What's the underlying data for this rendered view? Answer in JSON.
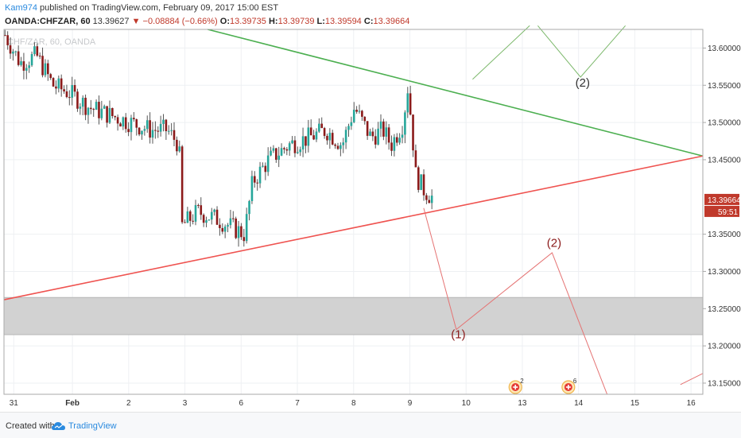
{
  "header": {
    "author": "Kam974",
    "published": " published on TradingView.com, February 09, 2017 15:00 EST",
    "symbol": "OANDA:CHFZAR, 60",
    "last": "13.39627",
    "arrow": "▼",
    "change": "−0.08884 (−0.66%)",
    "o_label": "O:",
    "o_val": "13.39735",
    "h_label": "H:",
    "h_val": "13.39739",
    "l_label": "L:",
    "l_val": "13.39594",
    "c_label": "C:",
    "c_val": "13.39664"
  },
  "footer": {
    "created_with": "Created with",
    "brand": "TradingView"
  },
  "chart_data": {
    "type": "candlestick",
    "watermark": "CHF/ZAR, 60, OANDA",
    "x_ticks": [
      "31",
      "Feb",
      "2",
      "3",
      "6",
      "7",
      "8",
      "9",
      "10",
      "13",
      "14",
      "15",
      "16"
    ],
    "y_ticks": [
      "13.60000",
      "13.55000",
      "13.50000",
      "13.45000",
      "13.35000",
      "13.30000",
      "13.25000",
      "13.20000",
      "13.15000"
    ],
    "ylim": [
      13.135,
      13.625
    ],
    "last_price_label": "13.39664",
    "countdown_label": "59:51",
    "path_points": [
      {
        "x": 0,
        "y": 13.62
      },
      {
        "x": 8,
        "y": 13.58
      },
      {
        "x": 16,
        "y": 13.59
      },
      {
        "x": 24,
        "y": 13.55
      },
      {
        "x": 32,
        "y": 13.54
      },
      {
        "x": 42,
        "y": 13.52
      },
      {
        "x": 52,
        "y": 13.51
      },
      {
        "x": 62,
        "y": 13.5
      },
      {
        "x": 72,
        "y": 13.49
      },
      {
        "x": 80,
        "y": 13.49
      },
      {
        "x": 86,
        "y": 13.47
      },
      {
        "x": 87,
        "y": 13.36
      },
      {
        "x": 95,
        "y": 13.38
      },
      {
        "x": 105,
        "y": 13.37
      },
      {
        "x": 118,
        "y": 13.35
      },
      {
        "x": 122,
        "y": 13.42
      },
      {
        "x": 130,
        "y": 13.45
      },
      {
        "x": 140,
        "y": 13.47
      },
      {
        "x": 150,
        "y": 13.48
      },
      {
        "x": 158,
        "y": 13.49
      },
      {
        "x": 166,
        "y": 13.47
      },
      {
        "x": 172,
        "y": 13.52
      },
      {
        "x": 176,
        "y": 13.5
      },
      {
        "x": 180,
        "y": 13.48
      },
      {
        "x": 186,
        "y": 13.49
      },
      {
        "x": 190,
        "y": 13.47
      },
      {
        "x": 196,
        "y": 13.5
      },
      {
        "x": 198,
        "y": 13.55
      },
      {
        "x": 200,
        "y": 13.5
      },
      {
        "x": 202,
        "y": 13.43
      },
      {
        "x": 206,
        "y": 13.41
      },
      {
        "x": 210,
        "y": 13.4
      }
    ],
    "trendlines": [
      {
        "name": "resistance",
        "color": "#4caf50",
        "x1": 100,
        "y1": 13.625,
        "x2": 343,
        "y2": 13.455
      },
      {
        "name": "support",
        "color": "#ef5350",
        "x1": 0,
        "y1": 13.262,
        "x2": 343,
        "y2": 13.455
      }
    ],
    "zone": {
      "from": 13.215,
      "to": 13.265,
      "color": "#d0d0d0"
    },
    "projections": [
      {
        "color": "#7cb86b",
        "points": [
          [
            230,
            13.558
          ],
          [
            258,
            13.63
          ]
        ]
      },
      {
        "color": "#7cb86b",
        "points": [
          [
            262,
            13.63
          ],
          [
            283,
            13.561
          ],
          [
            305,
            13.63
          ]
        ]
      },
      {
        "color": "#e57373",
        "points": [
          [
            206,
            13.385
          ],
          [
            222,
            13.222
          ],
          [
            269,
            13.325
          ],
          [
            296,
            13.135
          ]
        ]
      },
      {
        "color": "#e57373",
        "points": [
          [
            332,
            13.148
          ],
          [
            343,
            13.163
          ]
        ]
      }
    ],
    "wave_labels": [
      {
        "text": "(2)",
        "x": 284,
        "y": 13.548,
        "color": "#333333"
      },
      {
        "text": "(2)",
        "x": 270,
        "y": 13.333,
        "color": "#8b1a1a"
      },
      {
        "text": "(1)",
        "x": 223,
        "y": 13.21,
        "color": "#8b1a1a"
      }
    ],
    "event_badges": [
      {
        "x": 251,
        "count": "2"
      },
      {
        "x": 277,
        "count": "6"
      }
    ],
    "colors": {
      "up": "#26a69a",
      "down": "#8b1a1a",
      "wick": "#555555",
      "grid": "#eef0f3",
      "price_label": "#c0392b"
    }
  }
}
